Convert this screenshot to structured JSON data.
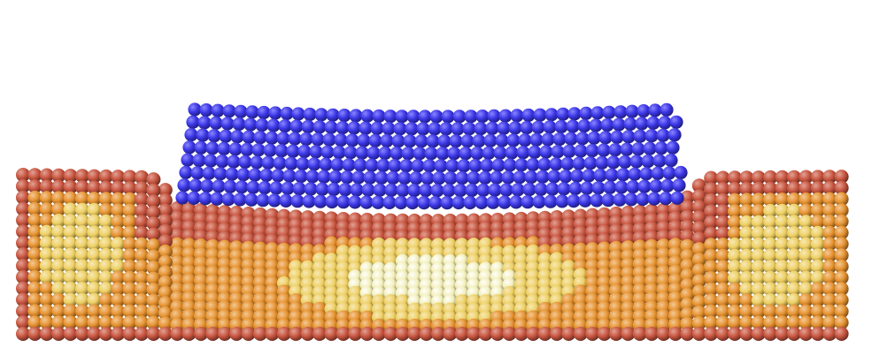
{
  "scene": {
    "palette": {
      "indenter_blue": "#3a36e6",
      "indenter_highlight": "#8b86ff",
      "surface_red": "#c8553f",
      "bulk_orange": "#e6922f",
      "bulk_yellow": "#eecf62",
      "core_cream": "#f3efb8",
      "background": "#ffffff"
    }
  }
}
